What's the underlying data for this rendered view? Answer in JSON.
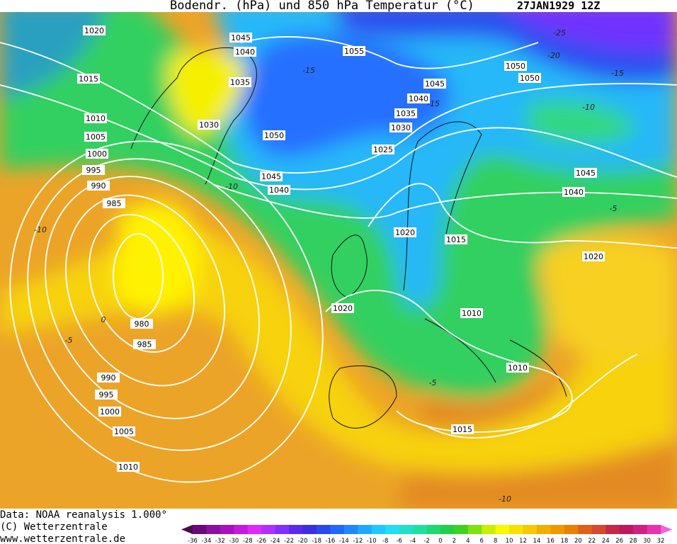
{
  "header": {
    "title": "Bodendr. (hPa) und 850 hPa Temperatur (°C)",
    "date": "27JAN1929 12Z"
  },
  "isobars": [
    "1020",
    "1045",
    "1040",
    "1055",
    "1015",
    "1035",
    "1045",
    "1050",
    "1050",
    "1040",
    "1035",
    "1010",
    "1030",
    "1030",
    "1005",
    "1050",
    "1025",
    "1000",
    "995",
    "1045",
    "1045",
    "990",
    "1040",
    "1040",
    "985",
    "1020",
    "1015",
    "1020",
    "1020",
    "1010",
    "980",
    "985",
    "1010",
    "990",
    "995",
    "1000",
    "1005",
    "1015",
    "1010"
  ],
  "temperature_labels": [
    "-25",
    "-20",
    "-15",
    "-15",
    "-15",
    "-10",
    "-10",
    "-10",
    "-5",
    "0",
    "-5",
    "-5",
    "-10"
  ],
  "footer": {
    "source": "Data: NOAA reanalysis 1.000°",
    "copyright": "(C) Wetterzentrale",
    "url": "www.wetterzentrale.de"
  },
  "colorbar": {
    "ticks": [
      -36,
      -34,
      -32,
      -30,
      -28,
      -26,
      -24,
      -22,
      -20,
      -18,
      -16,
      -14,
      -12,
      -10,
      -8,
      -6,
      -4,
      -2,
      0,
      2,
      4,
      6,
      8,
      10,
      12,
      14,
      16,
      18,
      20,
      22,
      24,
      26,
      28,
      30,
      32
    ],
    "colors": [
      "#4a0a4a",
      "#6a0a7a",
      "#8a10a0",
      "#a810c0",
      "#c818e0",
      "#e028f8",
      "#b030ff",
      "#8030ff",
      "#5a28f0",
      "#3a30e0",
      "#2a48f0",
      "#2068ff",
      "#2088ff",
      "#20a8ff",
      "#20c8ff",
      "#20e0f0",
      "#20e0c8",
      "#20e0a0",
      "#20d870",
      "#20d048",
      "#40d020",
      "#80e010",
      "#c8f000",
      "#f8f800",
      "#f8e000",
      "#f8c800",
      "#f0b000",
      "#f09800",
      "#e88000",
      "#e06018",
      "#d84830",
      "#c82848",
      "#c01858",
      "#d02080",
      "#e830b0",
      "#f060e0"
    ]
  }
}
